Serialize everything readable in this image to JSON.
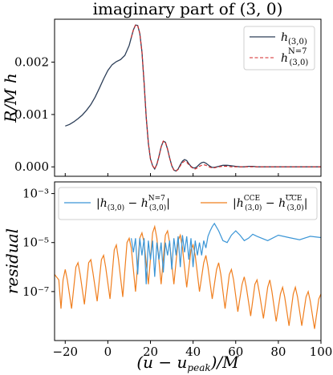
{
  "chart_data": [
    {
      "type": "line",
      "title": "imaginary part of (3, 0)",
      "xlabel": "",
      "ylabel": "R/M h",
      "xlim": [
        -25,
        100
      ],
      "ylim": [
        -0.00018,
        0.00282
      ],
      "x_ticks": [
        -20,
        0,
        20,
        40,
        60,
        80,
        100
      ],
      "y_ticks": [
        0.0,
        0.001,
        0.002
      ],
      "y_tick_labels": [
        "0.000",
        "0.001",
        "0.002"
      ],
      "legend_position": "top-right",
      "colors": {
        "h": "#2c3e58",
        "hN7": "#d62728"
      },
      "series": [
        {
          "name": "h(3,0)",
          "style": "solid",
          "x": [
            -20,
            -18,
            -16,
            -14,
            -12,
            -10,
            -8,
            -6,
            -4,
            -2,
            0,
            2,
            4,
            6,
            8,
            10,
            11,
            12,
            13,
            14,
            15,
            16,
            17,
            18,
            19,
            20,
            21,
            22,
            23,
            24,
            25,
            26,
            27,
            28,
            29,
            30,
            31,
            32,
            33,
            34,
            35,
            36,
            37,
            38,
            39,
            40,
            41,
            42,
            43,
            44,
            45,
            46,
            47,
            48,
            49,
            50,
            52,
            54,
            56,
            58,
            60,
            62,
            64,
            66,
            68,
            70,
            75,
            80,
            85,
            90,
            95,
            100
          ],
          "y": [
            0.00078,
            0.00081,
            0.00086,
            0.00092,
            0.00099,
            0.00108,
            0.00119,
            0.00133,
            0.0015,
            0.00168,
            0.00184,
            0.00195,
            0.00201,
            0.00205,
            0.00213,
            0.00232,
            0.00247,
            0.00262,
            0.00271,
            0.0027,
            0.00255,
            0.0022,
            0.0016,
            0.00095,
            0.00045,
            0.00015,
            2e-05,
            -4e-05,
            5e-05,
            0.0002,
            0.00038,
            0.00049,
            0.00047,
            0.00034,
            0.00017,
            2e-05,
            -6e-05,
            -8e-05,
            -4e-05,
            4e-05,
            0.00011,
            0.00014,
            0.00012,
            6e-05,
            1e-05,
            -2e-05,
            -2e-05,
            1e-05,
            5e-05,
            8e-05,
            9e-05,
            7e-05,
            4e-05,
            1e-05,
            -1e-05,
            -1e-05,
            1e-05,
            3e-05,
            3e-05,
            2e-05,
            1e-05,
            0.0,
            0.0,
            1e-05,
            1e-05,
            0.0,
            0.0,
            0.0,
            0.0,
            0.0,
            0.0,
            0.0
          ]
        },
        {
          "name": "h(3,0)^(N=7)",
          "style": "dashed",
          "x": [
            11,
            12,
            13,
            14,
            15,
            16,
            17,
            18,
            19,
            20,
            21,
            22,
            23,
            24,
            25,
            26,
            27,
            28,
            29,
            30,
            31,
            32,
            33,
            34,
            35,
            36,
            37,
            38,
            39,
            40,
            41,
            42,
            43,
            44,
            45,
            46,
            47,
            48,
            49,
            50,
            52,
            54,
            56,
            58,
            60,
            62,
            64,
            66,
            68,
            70,
            75,
            80,
            85,
            90,
            95,
            100
          ],
          "y": [
            0.00247,
            0.00262,
            0.00271,
            0.0027,
            0.00255,
            0.0022,
            0.0016,
            0.00095,
            0.00045,
            0.00015,
            2e-05,
            -4e-05,
            5e-05,
            0.0002,
            0.00038,
            0.00049,
            0.00047,
            0.00034,
            0.00017,
            2e-05,
            -6e-05,
            -8e-05,
            -5e-05,
            2e-05,
            8e-05,
            0.00011,
            9e-05,
            4e-05,
            0.0,
            -3e-05,
            -4e-05,
            -2e-05,
            1e-05,
            3e-05,
            4e-05,
            3e-05,
            1e-05,
            -1e-05,
            -2e-05,
            -2e-05,
            0.0,
            1e-05,
            1e-05,
            0.0,
            0.0,
            0.0,
            0.0,
            0.0,
            0.0,
            0.0,
            0.0,
            0.0,
            0.0,
            0.0,
            0.0,
            0.0
          ]
        }
      ]
    },
    {
      "type": "line",
      "title": "",
      "xlabel": "(u − u_peak)/M",
      "ylabel": "residual",
      "yscale": "log",
      "xlim": [
        -25,
        100
      ],
      "ylim": [
        1e-09,
        0.003
      ],
      "x_ticks": [
        -20,
        0,
        20,
        40,
        60,
        80,
        100
      ],
      "y_ticks": [
        0.001,
        1e-05,
        1e-07
      ],
      "y_tick_labels": [
        "10⁻³",
        "10⁻⁵",
        "10⁻⁷"
      ],
      "legend_position": "top",
      "colors": {
        "n7": "#3a95d6",
        "cce": "#f07f1f"
      },
      "series": [
        {
          "name": "|h(3,0) − h(3,0)^(N=7)|",
          "style": "solid",
          "x": [
            11,
            12,
            13,
            14,
            15,
            16,
            17,
            18,
            19,
            20,
            21,
            22,
            23,
            24,
            25,
            26,
            27,
            28,
            29,
            30,
            31,
            32,
            33,
            34,
            35,
            36,
            37,
            38,
            39,
            40,
            41,
            42,
            43,
            44,
            45,
            46,
            47,
            48,
            49,
            50,
            52,
            54,
            56,
            58,
            60,
            62,
            64,
            66,
            68,
            70,
            75,
            80,
            85,
            90,
            95,
            100
          ],
          "y": [
            1.5e-05,
            4e-06,
            1.5e-05,
            5e-07,
            1.5e-05,
            3e-06,
            1.5e-05,
            2e-07,
            1.2e-05,
            2e-06,
            1.2e-05,
            4e-07,
            1e-05,
            2e-06,
            1e-05,
            6e-07,
            1e-05,
            3e-06,
            1.2e-05,
            8e-07,
            1.5e-05,
            3e-06,
            1.8e-05,
            1e-06,
            2e-05,
            4e-06,
            1.8e-05,
            2e-06,
            1.5e-05,
            1e-06,
            1.2e-05,
            3e-06,
            1e-05,
            3e-06,
            1.2e-05,
            6e-06,
            1.8e-05,
            3e-05,
            4.5e-05,
            6e-05,
            3e-05,
            1.2e-05,
            1e-05,
            2e-05,
            3e-05,
            2e-05,
            1.2e-05,
            1.5e-05,
            2.2e-05,
            1.8e-05,
            1.2e-05,
            2e-05,
            1.6e-05,
            1.3e-05,
            1.8e-05,
            1.6e-05
          ]
        },
        {
          "name": "|h(3,0)^CCE − h(3,0)^(CCE-bar)|",
          "style": "solid",
          "x": [
            -25,
            -23,
            -22,
            -21,
            -20,
            -19,
            -17,
            -15,
            -14,
            -13,
            -11,
            -9,
            -8,
            -7,
            -5,
            -3,
            -2,
            -1,
            1,
            3,
            4,
            5,
            7,
            9,
            10,
            11,
            13,
            15,
            16,
            17,
            19,
            21,
            22,
            23,
            25,
            27,
            28,
            29,
            31,
            33,
            34,
            35,
            37,
            39,
            40,
            41,
            43,
            45,
            46,
            47,
            49,
            51,
            52,
            53,
            55,
            57,
            58,
            59,
            61,
            63,
            64,
            65,
            67,
            69,
            70,
            71,
            73,
            75,
            76,
            77,
            79,
            81,
            82,
            83,
            85,
            87,
            88,
            89,
            91,
            93,
            94,
            95,
            97,
            99,
            100
          ],
          "y": [
            5e-07,
            3e-07,
            2e-08,
            3e-07,
            8e-07,
            3e-07,
            2e-08,
            1e-06,
            1.5e-06,
            5e-07,
            3e-08,
            1.5e-06,
            2e-06,
            6e-07,
            4e-08,
            2e-06,
            3e-06,
            1e-06,
            5e-08,
            5e-06,
            8e-06,
            2e-06,
            6e-08,
            1e-05,
            1.5e-05,
            6e-06,
            1e-07,
            1.5e-05,
            2.5e-05,
            1e-05,
            2e-07,
            2.5e-05,
            4.5e-05,
            1.5e-05,
            2e-07,
            2e-05,
            3e-05,
            1e-05,
            2e-07,
            1.2e-05,
            2e-05,
            6e-06,
            1.5e-07,
            5e-06,
            8e-06,
            3e-06,
            1e-07,
            1.5e-06,
            3e-06,
            1e-06,
            5e-08,
            8e-07,
            1.5e-06,
            5e-07,
            2e-08,
            5e-07,
            8e-07,
            3e-07,
            1.5e-08,
            2e-07,
            4e-07,
            1.5e-07,
            1e-08,
            2e-07,
            3e-07,
            1e-07,
            8e-09,
            1.5e-07,
            3e-07,
            1e-07,
            6e-09,
            8e-08,
            1.5e-07,
            6e-08,
            4e-09,
            8e-08,
            1.5e-07,
            6e-08,
            4e-09,
            6e-08,
            1e-07,
            4e-08,
            3e-09,
            5e-08,
            8e-08
          ]
        }
      ]
    }
  ]
}
